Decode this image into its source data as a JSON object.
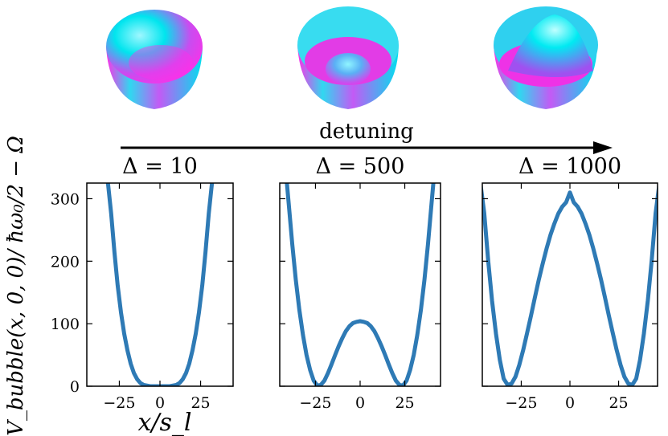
{
  "figure": {
    "arrow_label": "detuning",
    "ylabel": "V_bubble(x, 0, 0)/ ħω₀/2 − Ω",
    "xlabel": "x/s_l",
    "line_color": "#2e7ab5",
    "surface_colors": [
      "#00e5ee",
      "#ff2fe8",
      "#5fa8ff"
    ]
  },
  "chart_data": [
    {
      "type": "line",
      "title": "Δ = 10",
      "xlim": [
        -45,
        45
      ],
      "ylim": [
        0,
        325
      ],
      "xticks": [
        -25,
        0,
        25
      ],
      "yticks": [
        0,
        100,
        200,
        300
      ],
      "series": [
        {
          "x": [
            -32,
            -30,
            -28,
            -26,
            -24,
            -22,
            -20,
            -18,
            -16,
            -14,
            -12,
            -10,
            -8,
            -6,
            -4,
            -2,
            0,
            2,
            4,
            6,
            8,
            10,
            12,
            14,
            16,
            18,
            20,
            22,
            24,
            26,
            28,
            30,
            32
          ],
          "y": [
            325,
            276,
            214,
            161,
            118,
            84,
            57,
            36,
            21,
            11,
            5,
            2,
            1,
            0,
            0,
            0,
            0,
            0,
            0,
            0,
            1,
            2,
            5,
            11,
            21,
            36,
            57,
            84,
            118,
            161,
            214,
            276,
            325
          ]
        }
      ]
    },
    {
      "type": "line",
      "title": "Δ = 500",
      "xlim": [
        -45,
        45
      ],
      "ylim": [
        0,
        325
      ],
      "xticks": [
        -25,
        0,
        25
      ],
      "yticks": [
        0,
        100,
        200,
        300
      ],
      "series": [
        {
          "x": [
            -41,
            -40,
            -38,
            -36,
            -34,
            -32,
            -30,
            -28,
            -26,
            -24,
            -22,
            -20,
            -18,
            -16,
            -14,
            -12,
            -10,
            -8,
            -6,
            -4,
            -2,
            0,
            2,
            4,
            6,
            8,
            10,
            12,
            14,
            16,
            18,
            20,
            22,
            24,
            26,
            28,
            30,
            32,
            34,
            36,
            38,
            40,
            41
          ],
          "y": [
            325,
            293,
            227,
            170,
            122,
            82,
            50,
            26,
            9,
            1,
            2,
            9,
            21,
            35,
            50,
            64,
            77,
            88,
            96,
            101,
            103,
            104,
            103,
            101,
            96,
            88,
            77,
            64,
            50,
            35,
            21,
            9,
            2,
            1,
            9,
            26,
            50,
            82,
            122,
            170,
            227,
            293,
            325
          ]
        }
      ]
    },
    {
      "type": "line",
      "title": "Δ = 1000",
      "xlim": [
        -45,
        45
      ],
      "ylim": [
        0,
        325
      ],
      "xticks": [
        -25,
        0,
        25
      ],
      "yticks": [
        0,
        100,
        200,
        300
      ],
      "series": [
        {
          "x": [
            -46,
            -44,
            -42,
            -40,
            -38,
            -36,
            -34,
            -32,
            -30,
            -28,
            -26,
            -24,
            -22,
            -20,
            -18,
            -16,
            -14,
            -12,
            -10,
            -8,
            -6,
            -4,
            -2,
            0,
            2,
            4,
            6,
            8,
            10,
            12,
            14,
            16,
            18,
            20,
            22,
            24,
            26,
            28,
            30,
            32,
            34,
            36,
            38,
            40,
            42,
            44,
            46
          ],
          "y": [
            325,
            277,
            201,
            137,
            84,
            42,
            12,
            2,
            4,
            15,
            34,
            58,
            85,
            113,
            142,
            170,
            196,
            220,
            242,
            260,
            276,
            287,
            294,
            310,
            294,
            287,
            276,
            260,
            242,
            220,
            196,
            170,
            142,
            113,
            85,
            58,
            34,
            15,
            4,
            2,
            12,
            42,
            84,
            137,
            201,
            277,
            325
          ]
        }
      ]
    }
  ]
}
